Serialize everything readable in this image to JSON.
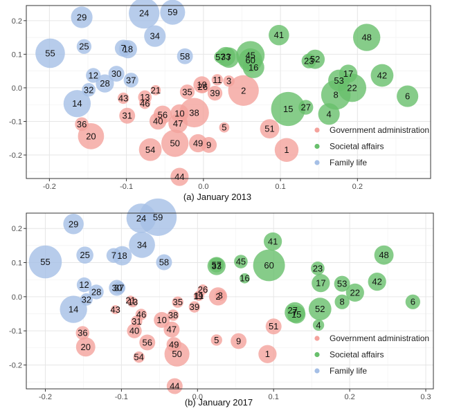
{
  "chart_data": [
    {
      "type": "scatter",
      "title": "(a) January 2013",
      "xlim": [
        -0.23,
        0.295
      ],
      "ylim": [
        -0.27,
        0.245
      ],
      "xticks": [
        -0.2,
        -0.1,
        0.0,
        0.1,
        0.2
      ],
      "xtick_labels": [
        "-0.2",
        "-0.1",
        "0.0",
        "0.1",
        "0.2"
      ],
      "yticks": [
        -0.2,
        -0.1,
        0.0,
        0.1,
        0.2
      ],
      "ytick_labels": [
        "-0.2",
        "-0.1",
        "0.0",
        "0.1",
        "0.2"
      ],
      "grid": true,
      "legend_position": "bottom-right",
      "series": [
        {
          "name": "Government administration",
          "color": "#f4a29c",
          "points": [
            {
              "label": "1",
              "x": 0.108,
              "y": -0.185,
              "size": 2.1
            },
            {
              "label": "2",
              "x": 0.052,
              "y": -0.008,
              "size": 2.7
            },
            {
              "label": "3",
              "x": 0.033,
              "y": 0.02,
              "size": 1.0
            },
            {
              "label": "5",
              "x": 0.027,
              "y": -0.118,
              "size": 0.9
            },
            {
              "label": "9",
              "x": 0.007,
              "y": -0.17,
              "size": 1.4
            },
            {
              "label": "10",
              "x": -0.031,
              "y": -0.076,
              "size": 1.6
            },
            {
              "label": "11",
              "x": 0.018,
              "y": 0.024,
              "size": 1.0
            },
            {
              "label": "13",
              "x": -0.076,
              "y": -0.028,
              "size": 1.2
            },
            {
              "label": "19",
              "x": -0.002,
              "y": 0.009,
              "size": 1.5
            },
            {
              "label": "20",
              "x": -0.146,
              "y": -0.144,
              "size": 2.3
            },
            {
              "label": "21",
              "x": -0.062,
              "y": -0.007,
              "size": 0.9
            },
            {
              "label": "26",
              "x": -0.001,
              "y": 0.003,
              "size": 1.1
            },
            {
              "label": "31",
              "x": -0.099,
              "y": -0.083,
              "size": 1.4
            },
            {
              "label": "35",
              "x": -0.021,
              "y": -0.012,
              "size": 1.3
            },
            {
              "label": "36",
              "x": -0.158,
              "y": -0.108,
              "size": 1.2
            },
            {
              "label": "38",
              "x": -0.012,
              "y": -0.074,
              "size": 2.6
            },
            {
              "label": "39",
              "x": 0.015,
              "y": -0.016,
              "size": 1.3
            },
            {
              "label": "40",
              "x": -0.059,
              "y": -0.099,
              "size": 1.5
            },
            {
              "label": "43",
              "x": -0.104,
              "y": -0.031,
              "size": 1.0
            },
            {
              "label": "44",
              "x": -0.031,
              "y": -0.265,
              "size": 1.6
            },
            {
              "label": "46",
              "x": -0.076,
              "y": -0.046,
              "size": 1.0
            },
            {
              "label": "47",
              "x": -0.033,
              "y": -0.106,
              "size": 1.7
            },
            {
              "label": "49",
              "x": -0.007,
              "y": -0.165,
              "size": 1.6
            },
            {
              "label": "50",
              "x": -0.037,
              "y": -0.165,
              "size": 2.4
            },
            {
              "label": "51",
              "x": 0.086,
              "y": -0.122,
              "size": 1.7
            },
            {
              "label": "54",
              "x": -0.069,
              "y": -0.184,
              "size": 2.0
            },
            {
              "label": "56",
              "x": -0.053,
              "y": -0.08,
              "size": 1.6
            }
          ]
        },
        {
          "name": "Societal affairs",
          "color": "#68bf6c",
          "points": [
            {
              "label": "4",
              "x": 0.163,
              "y": -0.078,
              "size": 1.9
            },
            {
              "label": "6",
              "x": 0.265,
              "y": -0.025,
              "size": 1.9
            },
            {
              "label": "7",
              "x": 0.033,
              "y": 0.09,
              "size": 1.8
            },
            {
              "label": "8",
              "x": 0.172,
              "y": -0.021,
              "size": 2.6
            },
            {
              "label": "15",
              "x": 0.11,
              "y": -0.063,
              "size": 3.0
            },
            {
              "label": "16",
              "x": 0.065,
              "y": 0.061,
              "size": 1.9
            },
            {
              "label": "17",
              "x": 0.188,
              "y": 0.042,
              "size": 1.6
            },
            {
              "label": "22",
              "x": 0.193,
              "y": 0.0,
              "size": 2.5
            },
            {
              "label": "23",
              "x": 0.137,
              "y": 0.08,
              "size": 1.3
            },
            {
              "label": "27",
              "x": 0.133,
              "y": -0.058,
              "size": 1.3
            },
            {
              "label": "33",
              "x": 0.029,
              "y": 0.093,
              "size": 1.7
            },
            {
              "label": "41",
              "x": 0.098,
              "y": 0.157,
              "size": 1.8
            },
            {
              "label": "42",
              "x": 0.232,
              "y": 0.037,
              "size": 2.0
            },
            {
              "label": "45",
              "x": 0.061,
              "y": 0.097,
              "size": 2.5
            },
            {
              "label": "48",
              "x": 0.212,
              "y": 0.15,
              "size": 2.4
            },
            {
              "label": "52",
              "x": 0.145,
              "y": 0.085,
              "size": 1.7
            },
            {
              "label": "53",
              "x": 0.176,
              "y": 0.022,
              "size": 1.9
            },
            {
              "label": "57",
              "x": 0.022,
              "y": 0.092,
              "size": 1.1
            },
            {
              "label": "60",
              "x": 0.061,
              "y": 0.082,
              "size": 2.1
            }
          ]
        },
        {
          "name": "Family life",
          "color": "#a5bfe6",
          "points": [
            {
              "label": "12",
              "x": -0.143,
              "y": 0.037,
              "size": 1.3
            },
            {
              "label": "14",
              "x": -0.164,
              "y": -0.047,
              "size": 2.4
            },
            {
              "label": "18",
              "x": -0.098,
              "y": 0.115,
              "size": 1.6
            },
            {
              "label": "24",
              "x": -0.077,
              "y": 0.222,
              "size": 2.7
            },
            {
              "label": "25",
              "x": -0.155,
              "y": 0.123,
              "size": 1.3
            },
            {
              "label": "28",
              "x": -0.128,
              "y": 0.013,
              "size": 1.6
            },
            {
              "label": "29",
              "x": -0.158,
              "y": 0.21,
              "size": 1.9
            },
            {
              "label": "30",
              "x": -0.113,
              "y": 0.042,
              "size": 1.4
            },
            {
              "label": "32",
              "x": -0.149,
              "y": -0.006,
              "size": 1.2
            },
            {
              "label": "34",
              "x": -0.063,
              "y": 0.154,
              "size": 1.9
            },
            {
              "label": "37",
              "x": -0.094,
              "y": 0.023,
              "size": 1.3
            },
            {
              "label": "55",
              "x": -0.199,
              "y": 0.103,
              "size": 2.6
            },
            {
              "label": "58",
              "x": -0.024,
              "y": 0.094,
              "size": 1.4
            },
            {
              "label": "59",
              "x": -0.04,
              "y": 0.225,
              "size": 2.2
            },
            {
              "label": "7",
              "x": -0.104,
              "y": 0.118,
              "size": 1.5
            }
          ]
        }
      ]
    },
    {
      "type": "scatter",
      "title": "(b) January 2017",
      "xlim": [
        -0.225,
        0.31
      ],
      "ylim": [
        -0.27,
        0.245
      ],
      "xticks": [
        -0.2,
        -0.1,
        0.0,
        0.1,
        0.2,
        0.3
      ],
      "xtick_labels": [
        "-0.2",
        "-0.1",
        "0.0",
        "0.1",
        "0.2",
        "0.3"
      ],
      "yticks": [
        -0.2,
        -0.1,
        0.0,
        0.1,
        0.2
      ],
      "ytick_labels": [
        "-0.2",
        "-0.1",
        "0.0",
        "0.1",
        "0.2"
      ],
      "grid": true,
      "legend_position": "bottom-right",
      "series": [
        {
          "name": "Government administration",
          "color": "#f4a29c",
          "points": [
            {
              "label": "1",
              "x": 0.092,
              "y": -0.168,
              "size": 1.6
            },
            {
              "label": "2",
              "x": 0.027,
              "y": 0.001,
              "size": 1.6
            },
            {
              "label": "3",
              "x": 0.03,
              "y": 0.004,
              "size": 1.0
            },
            {
              "label": "5",
              "x": 0.025,
              "y": -0.127,
              "size": 1.0
            },
            {
              "label": "9",
              "x": 0.054,
              "y": -0.13,
              "size": 1.4
            },
            {
              "label": "10",
              "x": -0.047,
              "y": -0.068,
              "size": 1.4
            },
            {
              "label": "11",
              "x": 0.002,
              "y": 0.003,
              "size": 0.9
            },
            {
              "label": "13",
              "x": -0.085,
              "y": -0.016,
              "size": 0.9
            },
            {
              "label": "19",
              "x": 0.001,
              "y": 0.002,
              "size": 0.8
            },
            {
              "label": "20",
              "x": -0.147,
              "y": -0.147,
              "size": 1.7
            },
            {
              "label": "21",
              "x": -0.088,
              "y": -0.01,
              "size": 0.8
            },
            {
              "label": "26",
              "x": 0.007,
              "y": 0.021,
              "size": 0.9
            },
            {
              "label": "31",
              "x": -0.08,
              "y": -0.072,
              "size": 1.0
            },
            {
              "label": "35",
              "x": -0.026,
              "y": -0.016,
              "size": 1.0
            },
            {
              "label": "36",
              "x": -0.151,
              "y": -0.106,
              "size": 1.2
            },
            {
              "label": "38",
              "x": -0.032,
              "y": -0.054,
              "size": 1.0
            },
            {
              "label": "39",
              "x": -0.004,
              "y": -0.03,
              "size": 1.0
            },
            {
              "label": "40",
              "x": -0.083,
              "y": -0.1,
              "size": 1.3
            },
            {
              "label": "43",
              "x": -0.108,
              "y": -0.038,
              "size": 0.8
            },
            {
              "label": "44",
              "x": -0.03,
              "y": -0.262,
              "size": 1.4
            },
            {
              "label": "46",
              "x": -0.074,
              "y": -0.052,
              "size": 1.0
            },
            {
              "label": "47",
              "x": -0.034,
              "y": -0.096,
              "size": 1.4
            },
            {
              "label": "49",
              "x": -0.031,
              "y": -0.14,
              "size": 1.3
            },
            {
              "label": "50",
              "x": -0.027,
              "y": -0.168,
              "size": 2.2
            },
            {
              "label": "51",
              "x": 0.1,
              "y": -0.087,
              "size": 1.4
            },
            {
              "label": "54",
              "x": -0.077,
              "y": -0.177,
              "size": 1.0
            },
            {
              "label": "56",
              "x": -0.066,
              "y": -0.134,
              "size": 1.4
            }
          ]
        },
        {
          "name": "Societal affairs",
          "color": "#68bf6c",
          "points": [
            {
              "label": "4",
              "x": 0.159,
              "y": -0.083,
              "size": 1.0
            },
            {
              "label": "6",
              "x": 0.283,
              "y": -0.015,
              "size": 1.3
            },
            {
              "label": "7",
              "x": 0.128,
              "y": -0.046,
              "size": 1.8
            },
            {
              "label": "8",
              "x": 0.19,
              "y": -0.015,
              "size": 1.3
            },
            {
              "label": "15",
              "x": 0.13,
              "y": -0.052,
              "size": 1.6
            },
            {
              "label": "16",
              "x": 0.062,
              "y": 0.054,
              "size": 0.9
            },
            {
              "label": "17",
              "x": 0.162,
              "y": 0.04,
              "size": 1.6
            },
            {
              "label": "22",
              "x": 0.207,
              "y": 0.012,
              "size": 1.6
            },
            {
              "label": "23",
              "x": 0.158,
              "y": 0.083,
              "size": 1.2
            },
            {
              "label": "27",
              "x": 0.125,
              "y": -0.04,
              "size": 1.0
            },
            {
              "label": "33",
              "x": 0.025,
              "y": 0.09,
              "size": 1.6
            },
            {
              "label": "41",
              "x": 0.099,
              "y": 0.162,
              "size": 1.6
            },
            {
              "label": "42",
              "x": 0.236,
              "y": 0.044,
              "size": 1.6
            },
            {
              "label": "45",
              "x": 0.057,
              "y": 0.103,
              "size": 1.2
            },
            {
              "label": "48",
              "x": 0.245,
              "y": 0.122,
              "size": 1.7
            },
            {
              "label": "52",
              "x": 0.161,
              "y": -0.036,
              "size": 2.0
            },
            {
              "label": "53",
              "x": 0.19,
              "y": 0.038,
              "size": 1.4
            },
            {
              "label": "57",
              "x": 0.025,
              "y": 0.093,
              "size": 1.3
            },
            {
              "label": "60",
              "x": 0.094,
              "y": 0.092,
              "size": 2.8
            }
          ]
        },
        {
          "name": "Family life",
          "color": "#a5bfe6",
          "points": [
            {
              "label": "12",
              "x": -0.149,
              "y": 0.035,
              "size": 1.3
            },
            {
              "label": "14",
              "x": -0.163,
              "y": -0.037,
              "size": 2.4
            },
            {
              "label": "18",
              "x": -0.099,
              "y": 0.12,
              "size": 1.7
            },
            {
              "label": "24",
              "x": -0.074,
              "y": 0.23,
              "size": 2.6
            },
            {
              "label": "25",
              "x": -0.148,
              "y": 0.122,
              "size": 1.5
            },
            {
              "label": "28",
              "x": -0.133,
              "y": 0.014,
              "size": 1.3
            },
            {
              "label": "29",
              "x": -0.163,
              "y": 0.213,
              "size": 1.8
            },
            {
              "label": "30",
              "x": -0.106,
              "y": 0.026,
              "size": 1.4
            },
            {
              "label": "32",
              "x": -0.146,
              "y": -0.008,
              "size": 1.1
            },
            {
              "label": "34",
              "x": -0.073,
              "y": 0.152,
              "size": 2.3
            },
            {
              "label": "37",
              "x": -0.103,
              "y": 0.026,
              "size": 1.1
            },
            {
              "label": "55",
              "x": -0.2,
              "y": 0.102,
              "size": 2.9
            },
            {
              "label": "58",
              "x": -0.044,
              "y": 0.101,
              "size": 1.4
            },
            {
              "label": "59",
              "x": -0.052,
              "y": 0.233,
              "size": 3.3
            },
            {
              "label": "7",
              "x": -0.11,
              "y": 0.121,
              "size": 1.3
            }
          ]
        }
      ]
    }
  ],
  "colors": {
    "panel_background": "#ffffff",
    "grid_major": "#e6e6e6",
    "grid_minor": "#f2f2f2",
    "frame": "#333333"
  }
}
